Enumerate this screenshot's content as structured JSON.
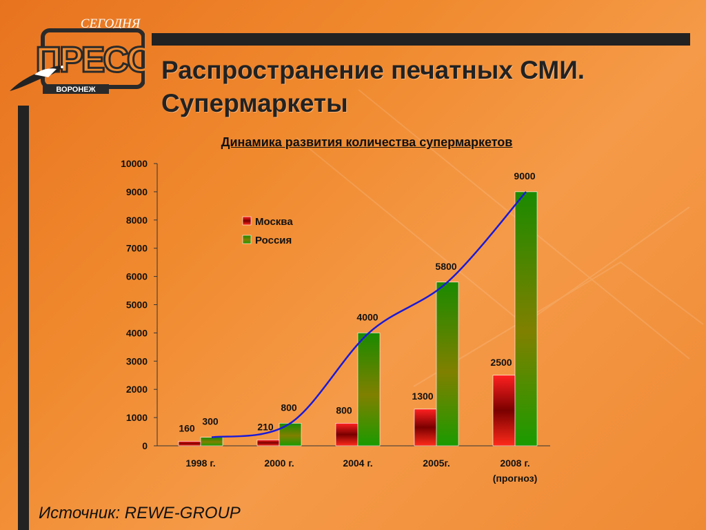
{
  "header": {
    "title_line1": "Распространение печатных СМИ.",
    "title_line2": "Супермаркеты"
  },
  "logo": {
    "brand": "ПРЕСС",
    "top_text": "СЕГОДНЯ",
    "city": "ВОРОНЕЖ"
  },
  "footer": {
    "source": "Источник: REWE-GROUP"
  },
  "colors": {
    "moscow": "#cc1111",
    "russia": "#2a8a00",
    "trend": "#1a1ad8",
    "accent_bars": "#222222"
  },
  "chart_data": {
    "type": "bar",
    "title": "Динамика развития количества супермаркетов",
    "categories": [
      "1998 г.",
      "2000 г.",
      "2004 г.",
      "2005г.",
      "2008 г."
    ],
    "category_notes": [
      "",
      "",
      "",
      "",
      "(прогноз)"
    ],
    "series": [
      {
        "name": "Москва",
        "values": [
          160,
          210,
          800,
          1300,
          2500
        ]
      },
      {
        "name": "Россия",
        "values": [
          300,
          800,
          4000,
          5800,
          9000
        ]
      }
    ],
    "trendline": {
      "series": "Россия",
      "style": "smooth curve"
    },
    "ylim": [
      0,
      10000
    ],
    "yticks": [
      0,
      1000,
      2000,
      3000,
      4000,
      5000,
      6000,
      7000,
      8000,
      9000,
      10000
    ],
    "legend_position": "upper-left",
    "grid": false
  }
}
